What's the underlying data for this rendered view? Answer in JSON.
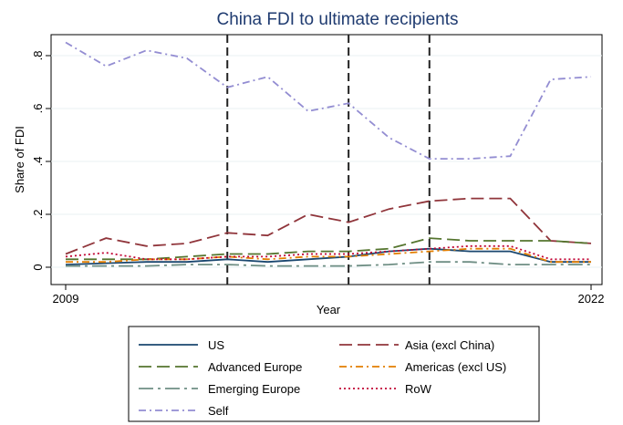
{
  "chart_data": {
    "type": "line",
    "title": "China FDI to ultimate recipients",
    "xlabel": "Year",
    "ylabel": "Share of FDI",
    "x": [
      2009,
      2010,
      2011,
      2012,
      2013,
      2014,
      2015,
      2016,
      2017,
      2018,
      2019,
      2020,
      2021,
      2022
    ],
    "x_ticks": [
      2009,
      2022
    ],
    "x_tick_labels": [
      "2009",
      "2022"
    ],
    "y_ticks": [
      0,
      0.2,
      0.4,
      0.6,
      0.8
    ],
    "y_tick_labels": [
      "0",
      ".2",
      ".4",
      ".6",
      ".8"
    ],
    "xlim": [
      2009,
      2022
    ],
    "ylim": [
      0,
      0.85
    ],
    "vlines": [
      2013,
      2016,
      2018
    ],
    "grid": true,
    "legend_position": "bottom",
    "series": [
      {
        "name": "US",
        "color": "#1a476f",
        "dash": "solid",
        "values": [
          0.01,
          0.015,
          0.02,
          0.02,
          0.03,
          0.02,
          0.03,
          0.04,
          0.06,
          0.07,
          0.06,
          0.06,
          0.02,
          0.02
        ]
      },
      {
        "name": "Asia (excl China)",
        "color": "#90353b",
        "dash": "longdash",
        "values": [
          0.05,
          0.11,
          0.08,
          0.09,
          0.13,
          0.12,
          0.2,
          0.17,
          0.22,
          0.25,
          0.26,
          0.26,
          0.1,
          0.09
        ]
      },
      {
        "name": "Advanced Europe",
        "color": "#55752f",
        "dash": "longdash",
        "values": [
          0.03,
          0.03,
          0.03,
          0.04,
          0.05,
          0.05,
          0.06,
          0.06,
          0.07,
          0.11,
          0.1,
          0.1,
          0.1,
          0.09
        ]
      },
      {
        "name": "Americas (excl US)",
        "color": "#e37e00",
        "dash": "dashdot",
        "values": [
          0.02,
          0.02,
          0.03,
          0.03,
          0.04,
          0.03,
          0.04,
          0.04,
          0.05,
          0.06,
          0.07,
          0.07,
          0.02,
          0.02
        ]
      },
      {
        "name": "Emerging Europe",
        "color": "#6e8e84",
        "dash": "longdashdot",
        "values": [
          0.005,
          0.005,
          0.005,
          0.01,
          0.01,
          0.005,
          0.005,
          0.005,
          0.01,
          0.02,
          0.02,
          0.01,
          0.01,
          0.01
        ]
      },
      {
        "name": "RoW",
        "color": "#c10534",
        "dash": "dotted",
        "values": [
          0.04,
          0.055,
          0.03,
          0.03,
          0.04,
          0.04,
          0.05,
          0.05,
          0.06,
          0.07,
          0.08,
          0.08,
          0.03,
          0.03
        ]
      },
      {
        "name": "Self",
        "color": "#938dd2",
        "dash": "dashdot",
        "values": [
          0.85,
          0.76,
          0.82,
          0.79,
          0.68,
          0.72,
          0.59,
          0.62,
          0.49,
          0.41,
          0.41,
          0.42,
          0.71,
          0.72
        ]
      }
    ]
  }
}
